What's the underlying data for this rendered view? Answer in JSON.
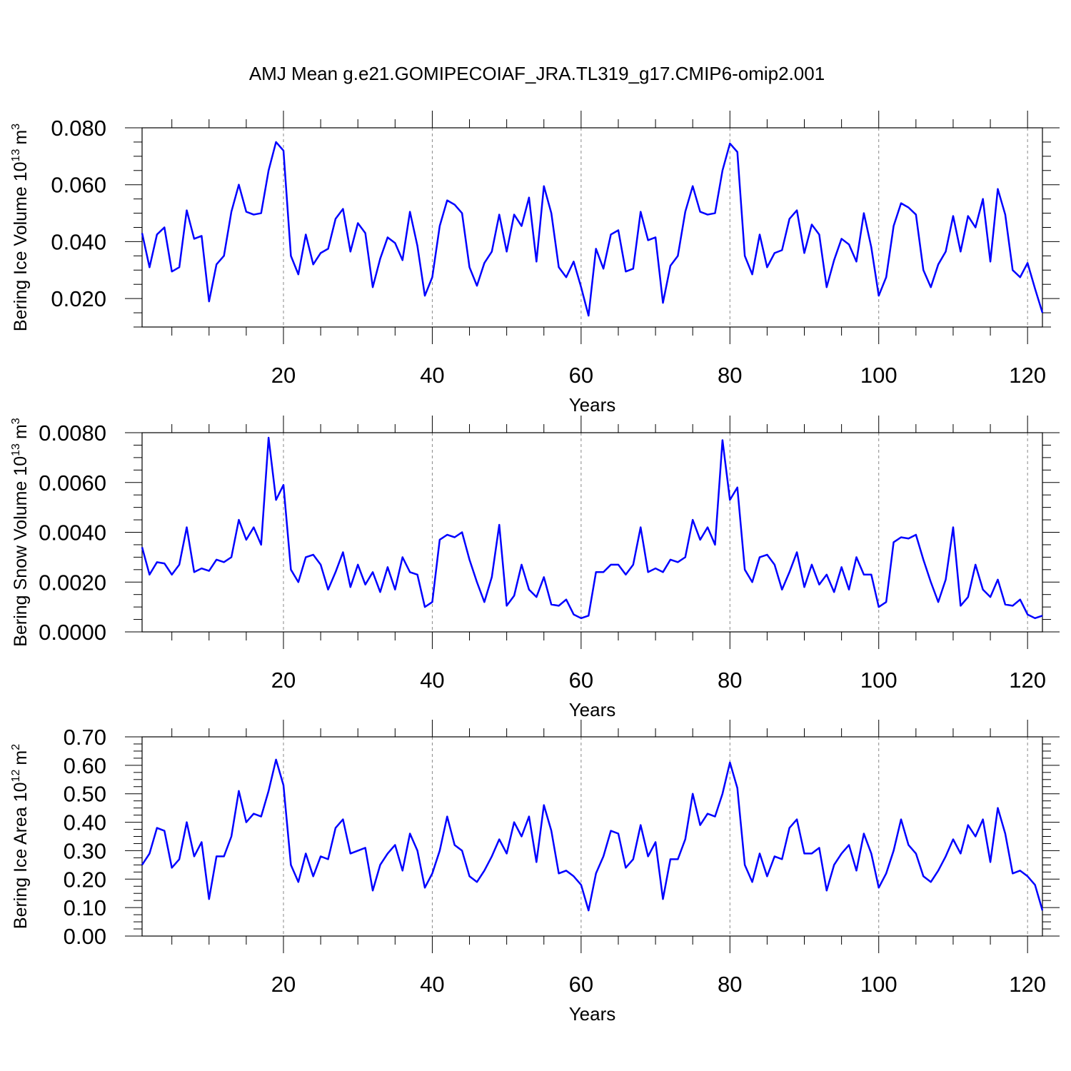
{
  "title": "AMJ Mean g.e21.GOMIPECOIAF_JRA.TL319_g17.CMIP6-omip2.001",
  "colors": {
    "line": "#0000ff",
    "axis": "#000000",
    "grid": "#888888"
  },
  "chart_data": [
    {
      "type": "line",
      "ylabel": "Bering Ice Volume",
      "ylabel_unit_base": "10",
      "ylabel_unit_exp": "13",
      "ylabel_unit": "m",
      "ylabel_unit_pow": "3",
      "xlabel": "Years",
      "xlim": [
        1,
        122
      ],
      "ylim": [
        0.01,
        0.08
      ],
      "yticks": [
        "0.020",
        "0.040",
        "0.060",
        "0.080"
      ],
      "xticks": [
        "20",
        "40",
        "60",
        "80",
        "100",
        "120"
      ],
      "grid_x": [
        20,
        40,
        60,
        80,
        100,
        120
      ],
      "series": [
        {
          "values": [
            0.043,
            0.031,
            0.0425,
            0.045,
            0.0295,
            0.031,
            0.051,
            0.041,
            0.042,
            0.019,
            0.032,
            0.035,
            0.0505,
            0.06,
            0.0505,
            0.0495,
            0.05,
            0.065,
            0.075,
            0.072,
            0.035,
            0.0285,
            0.0425,
            0.032,
            0.036,
            0.0375,
            0.048,
            0.0515,
            0.0365,
            0.0465,
            0.043,
            0.024,
            0.034,
            0.0415,
            0.0395,
            0.0335,
            0.0505,
            0.0385,
            0.021,
            0.0275,
            0.0455,
            0.0545,
            0.053,
            0.05,
            0.031,
            0.0245,
            0.0325,
            0.0365,
            0.0495,
            0.0365,
            0.0495,
            0.0455,
            0.0555,
            0.033,
            0.0595,
            0.05,
            0.031,
            0.0275,
            0.033,
            0.024,
            0.014,
            0.0375,
            0.0305,
            0.0425,
            0.044,
            0.0295,
            0.0305,
            0.0505,
            0.0405,
            0.0415,
            0.0185,
            0.0315,
            0.035,
            0.0505,
            0.0595,
            0.0505,
            0.0495,
            0.05,
            0.065,
            0.0745,
            0.0715,
            0.035,
            0.0285,
            0.0425,
            0.031,
            0.036,
            0.037,
            0.048,
            0.051,
            0.036,
            0.046,
            0.0425,
            0.024,
            0.0335,
            0.041,
            0.039,
            0.033,
            0.05,
            0.038,
            0.021,
            0.0275,
            0.0455,
            0.0535,
            0.052,
            0.0495,
            0.03,
            0.024,
            0.032,
            0.0365,
            0.049,
            0.0365,
            0.049,
            0.045,
            0.055,
            0.033,
            0.0585,
            0.0495,
            0.03,
            0.0275,
            0.0325,
            0.0235,
            0.015
          ]
        }
      ]
    },
    {
      "type": "line",
      "ylabel": "Bering Snow Volume",
      "ylabel_unit_base": "10",
      "ylabel_unit_exp": "13",
      "ylabel_unit": "m",
      "ylabel_unit_pow": "3",
      "xlabel": "Years",
      "xlim": [
        1,
        122
      ],
      "ylim": [
        0.0,
        0.008
      ],
      "yticks": [
        "0.0000",
        "0.0020",
        "0.0040",
        "0.0060",
        "0.0080"
      ],
      "xticks": [
        "20",
        "40",
        "60",
        "80",
        "100",
        "120"
      ],
      "grid_x": [
        20,
        40,
        60,
        80,
        100,
        120
      ],
      "series": [
        {
          "values": [
            0.0034,
            0.0023,
            0.0028,
            0.00275,
            0.0023,
            0.0027,
            0.0042,
            0.0024,
            0.00255,
            0.00245,
            0.0029,
            0.0028,
            0.003,
            0.0045,
            0.0037,
            0.0042,
            0.0035,
            0.0078,
            0.0053,
            0.0059,
            0.0025,
            0.002,
            0.003,
            0.0031,
            0.0027,
            0.0017,
            0.0024,
            0.0032,
            0.0018,
            0.0027,
            0.0019,
            0.0024,
            0.0016,
            0.0026,
            0.0017,
            0.003,
            0.0024,
            0.0023,
            0.001,
            0.0012,
            0.0037,
            0.0039,
            0.0038,
            0.004,
            0.0029,
            0.002,
            0.0012,
            0.0022,
            0.0043,
            0.00105,
            0.00145,
            0.0027,
            0.0017,
            0.0014,
            0.0022,
            0.0011,
            0.00105,
            0.0013,
            0.0007,
            0.00055,
            0.00065,
            0.0024,
            0.0024,
            0.0027,
            0.0027,
            0.0023,
            0.0027,
            0.0042,
            0.0024,
            0.00255,
            0.0024,
            0.0029,
            0.0028,
            0.003,
            0.0045,
            0.0037,
            0.0042,
            0.0035,
            0.0077,
            0.0053,
            0.0058,
            0.0025,
            0.002,
            0.003,
            0.0031,
            0.0027,
            0.0017,
            0.0024,
            0.0032,
            0.0018,
            0.0027,
            0.0019,
            0.0023,
            0.0016,
            0.0026,
            0.0017,
            0.003,
            0.0023,
            0.0023,
            0.001,
            0.0012,
            0.0036,
            0.0038,
            0.00375,
            0.0039,
            0.0029,
            0.002,
            0.0012,
            0.0021,
            0.0042,
            0.00105,
            0.0014,
            0.0027,
            0.0017,
            0.0014,
            0.0021,
            0.0011,
            0.00105,
            0.0013,
            0.0007,
            0.00055,
            0.00065
          ]
        }
      ]
    },
    {
      "type": "line",
      "ylabel": "Bering Ice Area",
      "ylabel_unit_base": "10",
      "ylabel_unit_exp": "12",
      "ylabel_unit": "m",
      "ylabel_unit_pow": "2",
      "xlabel": "Years",
      "xlim": [
        1,
        122
      ],
      "ylim": [
        0.0,
        0.7
      ],
      "yticks": [
        "0.00",
        "0.10",
        "0.20",
        "0.30",
        "0.40",
        "0.50",
        "0.60",
        "0.70"
      ],
      "xticks": [
        "20",
        "40",
        "60",
        "80",
        "100",
        "120"
      ],
      "grid_x": [
        20,
        40,
        60,
        80,
        100,
        120
      ],
      "series": [
        {
          "values": [
            0.25,
            0.29,
            0.38,
            0.37,
            0.24,
            0.27,
            0.4,
            0.28,
            0.33,
            0.13,
            0.28,
            0.28,
            0.35,
            0.51,
            0.4,
            0.43,
            0.42,
            0.51,
            0.62,
            0.53,
            0.25,
            0.19,
            0.29,
            0.21,
            0.28,
            0.27,
            0.38,
            0.41,
            0.29,
            0.3,
            0.31,
            0.16,
            0.25,
            0.29,
            0.32,
            0.23,
            0.36,
            0.3,
            0.17,
            0.22,
            0.3,
            0.42,
            0.32,
            0.3,
            0.21,
            0.19,
            0.23,
            0.28,
            0.34,
            0.29,
            0.4,
            0.35,
            0.42,
            0.26,
            0.46,
            0.37,
            0.22,
            0.23,
            0.21,
            0.18,
            0.09,
            0.22,
            0.28,
            0.37,
            0.36,
            0.24,
            0.27,
            0.39,
            0.28,
            0.33,
            0.13,
            0.27,
            0.27,
            0.34,
            0.5,
            0.39,
            0.43,
            0.42,
            0.5,
            0.61,
            0.52,
            0.25,
            0.19,
            0.29,
            0.21,
            0.28,
            0.27,
            0.38,
            0.41,
            0.29,
            0.29,
            0.31,
            0.16,
            0.25,
            0.29,
            0.32,
            0.23,
            0.36,
            0.29,
            0.17,
            0.22,
            0.3,
            0.41,
            0.32,
            0.29,
            0.21,
            0.19,
            0.23,
            0.28,
            0.34,
            0.29,
            0.39,
            0.35,
            0.41,
            0.26,
            0.45,
            0.36,
            0.22,
            0.23,
            0.21,
            0.18,
            0.09
          ]
        }
      ]
    }
  ]
}
